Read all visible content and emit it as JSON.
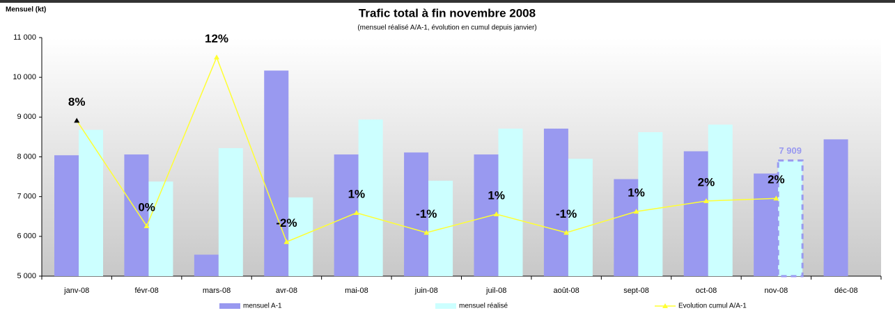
{
  "chart_data": {
    "type": "bar",
    "title": "Trafic total à fin novembre 2008",
    "subtitle": "(mensuel réalisé A/A-1, évolution en cumul depuis janvier)",
    "y_axis_label": "Mensuel (kt)",
    "categories": [
      "janv-08",
      "févr-08",
      "mars-08",
      "avr-08",
      "mai-08",
      "juin-08",
      "juil-08",
      "août-08",
      "sept-08",
      "oct-08",
      "nov-08",
      "déc-08"
    ],
    "series": [
      {
        "name": "mensuel A-1",
        "type": "bar",
        "color": "#9999f0",
        "values": [
          8040,
          8060,
          5540,
          10170,
          8060,
          8110,
          8060,
          8710,
          7440,
          8140,
          7580,
          8440
        ]
      },
      {
        "name": "mensuel réalisé",
        "type": "bar",
        "color": "#ccffff",
        "values": [
          8680,
          7380,
          8220,
          6980,
          8940,
          7400,
          8710,
          7950,
          8620,
          8810,
          7909,
          null
        ],
        "value_labels": [
          null,
          null,
          null,
          null,
          null,
          null,
          null,
          null,
          null,
          null,
          "7 909",
          null
        ]
      },
      {
        "name": "Evolution cumul A/A-1",
        "type": "line",
        "axis": "y2",
        "color": "#ffff33",
        "values": [
          7.6,
          -0.4,
          12.4,
          -1.6,
          0.6,
          -0.9,
          0.5,
          -0.9,
          0.7,
          1.5,
          1.7,
          null
        ],
        "value_labels": [
          "8%",
          "0%",
          "12%",
          "-2%",
          "1%",
          "-1%",
          "1%",
          "-1%",
          "1%",
          "2%",
          "2%",
          null
        ]
      }
    ],
    "ylim": [
      5000,
      11000
    ],
    "yticks": [
      {
        "value": 5000,
        "label": "5 000"
      },
      {
        "value": 6000,
        "label": "6 000"
      },
      {
        "value": 7000,
        "label": "7 000"
      },
      {
        "value": 8000,
        "label": "8 000"
      },
      {
        "value": 9000,
        "label": "9 000"
      },
      {
        "value": 10000,
        "label": "10 000"
      },
      {
        "value": 11000,
        "label": "11 000"
      }
    ],
    "y2lim": [
      -4.2,
      13.9
    ],
    "legend": "bottom"
  }
}
